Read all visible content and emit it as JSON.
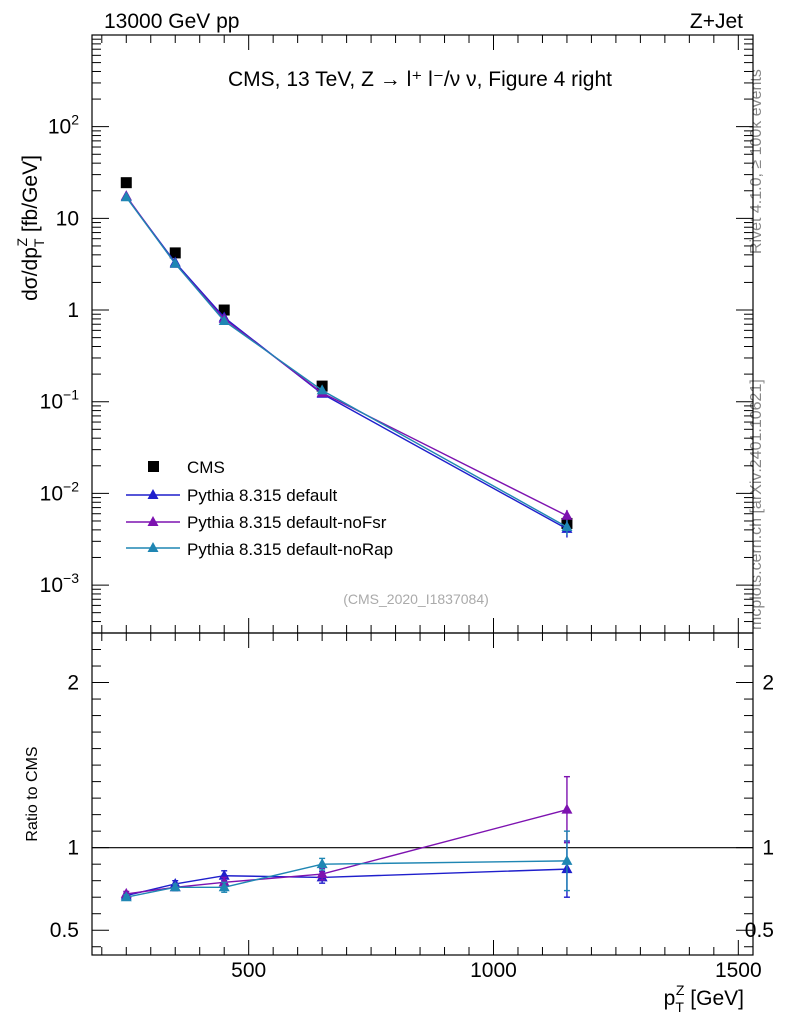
{
  "header": {
    "left": "13000 GeV pp",
    "right": "Z+Jet",
    "side_rivet": "Rivet 4.1.0, ≥ 100k events",
    "side_mcplots": "mcplots.cern.ch [arXiv:2401.10621]",
    "analysis_id": "(CMS_2020_I1837084)"
  },
  "chart_data": [
    {
      "type": "scatter",
      "title": "CMS, 13 TeV, Z →  l⁺ l⁻/ν ν, Figure 4 right",
      "ylabel_base": "dσ/dp",
      "ylabel_sup": "Z",
      "ylabel_sub": "T",
      "ylabel_unit": " [fb/GeV]",
      "yscale": "log",
      "ylim": [
        0.0003,
        1000
      ],
      "xlim": [
        180,
        1530
      ],
      "ytick_labels": [
        {
          "value": 0.001,
          "base": "10",
          "exp": "−3"
        },
        {
          "value": 0.01,
          "base": "10",
          "exp": "−2"
        },
        {
          "value": 0.1,
          "base": "10",
          "exp": "−1"
        },
        {
          "value": 1,
          "base": "1",
          "exp": ""
        },
        {
          "value": 10,
          "base": "10",
          "exp": ""
        },
        {
          "value": 100,
          "base": "10",
          "exp": "2"
        }
      ],
      "legend_position": "bottom-left",
      "x": [
        250,
        350,
        450,
        650,
        1150
      ],
      "series": [
        {
          "name": "CMS",
          "color": "#000000",
          "marker": "square",
          "values": [
            24.5,
            4.2,
            1.0,
            0.148,
            0.0047
          ],
          "errors": [
            0,
            0,
            0,
            0,
            0.0007
          ]
        },
        {
          "name": "Pythia 8.315 default",
          "color": "#1f1fcc",
          "marker": "triangle",
          "values": [
            17.2,
            3.3,
            0.83,
            0.122,
            0.0041
          ],
          "errors": [
            0.3,
            0.08,
            0.03,
            0.005,
            0.0008
          ]
        },
        {
          "name": "Pythia 8.315 default-noFsr",
          "color": "#7d12b0",
          "marker": "triangle",
          "values": [
            17.5,
            3.2,
            0.8,
            0.125,
            0.0057
          ],
          "errors": [
            0.3,
            0.08,
            0.03,
            0.005,
            0.0009
          ]
        },
        {
          "name": "Pythia 8.315 default-noRap",
          "color": "#1f86b3",
          "marker": "triangle",
          "values": [
            17.0,
            3.2,
            0.76,
            0.133,
            0.0043
          ],
          "errors": [
            0.3,
            0.08,
            0.03,
            0.005,
            0.0008
          ]
        }
      ]
    },
    {
      "type": "scatter",
      "ylabel": "Ratio to CMS",
      "xlabel_base": "p",
      "xlabel_sup": "Z",
      "xlabel_sub": "T",
      "xlabel_unit": " [GeV]",
      "xlim": [
        180,
        1530
      ],
      "ylim": [
        0.35,
        2.3
      ],
      "xtick_labels": [
        "500",
        "1000",
        "1500"
      ],
      "xtick_values": [
        500,
        1000,
        1500
      ],
      "ytick_labels": [
        "0.5",
        "1",
        "2"
      ],
      "ytick_values": [
        0.5,
        1,
        2
      ],
      "reference_line": 1,
      "x": [
        250,
        350,
        450,
        650,
        1150
      ],
      "series": [
        {
          "name": "Pythia 8.315 default",
          "color": "#1f1fcc",
          "values": [
            0.71,
            0.78,
            0.83,
            0.82,
            0.87
          ],
          "errors": [
            0.015,
            0.02,
            0.03,
            0.035,
            0.17
          ]
        },
        {
          "name": "Pythia 8.315 default-noFsr",
          "color": "#7d12b0",
          "values": [
            0.72,
            0.76,
            0.79,
            0.84,
            1.23
          ],
          "errors": [
            0.015,
            0.02,
            0.03,
            0.035,
            0.2
          ]
        },
        {
          "name": "Pythia 8.315 default-noRap",
          "color": "#1f86b3",
          "values": [
            0.7,
            0.76,
            0.76,
            0.9,
            0.92
          ],
          "errors": [
            0.015,
            0.02,
            0.03,
            0.035,
            0.18
          ]
        }
      ]
    }
  ]
}
